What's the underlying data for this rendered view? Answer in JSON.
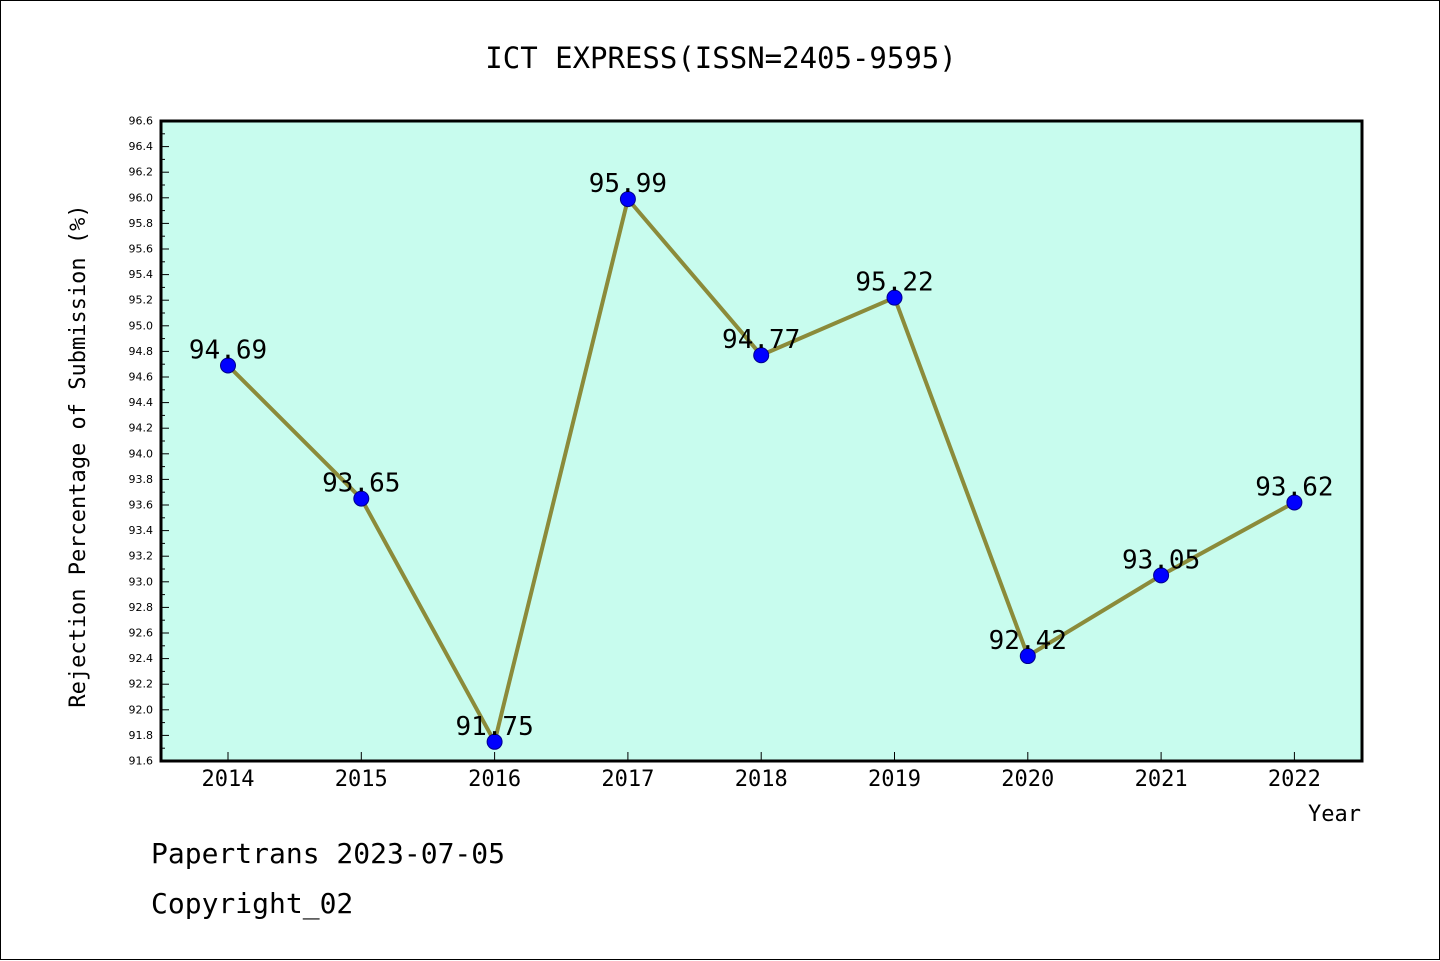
{
  "chart_data": {
    "type": "line",
    "title": "ICT EXPRESS(ISSN=2405-9595)",
    "xlabel": "Year",
    "ylabel": "Rejection Percentage of Submission (%)",
    "categories": [
      "2014",
      "2015",
      "2016",
      "2017",
      "2018",
      "2019",
      "2020",
      "2021",
      "2022"
    ],
    "values": [
      94.69,
      93.65,
      91.75,
      95.99,
      94.77,
      95.22,
      92.42,
      93.05,
      93.62
    ],
    "data_labels": [
      "94.69",
      "93.65",
      "91.75",
      "95.99",
      "94.77",
      "95.22",
      "92.42",
      "93.05",
      "93.62"
    ],
    "ylim": [
      91.6,
      96.6
    ],
    "yticks": [
      "91.6",
      "91.8",
      "92.0",
      "92.2",
      "92.4",
      "92.6",
      "92.8",
      "93.0",
      "93.2",
      "93.4",
      "93.6",
      "93.8",
      "94.0",
      "94.2",
      "94.4",
      "94.6",
      "94.8",
      "95.0",
      "95.2",
      "95.4",
      "95.6",
      "95.8",
      "96.0",
      "96.2",
      "96.4",
      "96.6"
    ],
    "grid": false,
    "colors": {
      "plot_background": "#c8fcee",
      "line": "#8b8b3a",
      "marker": "#0000ff"
    }
  },
  "footer": {
    "line1": "Papertrans 2023-07-05",
    "line2": "Copyright_02"
  }
}
